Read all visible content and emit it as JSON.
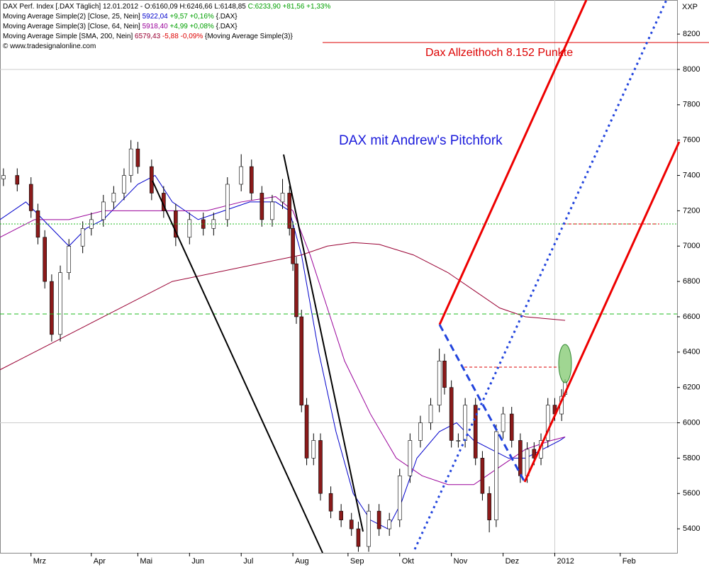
{
  "header": {
    "lines": [
      {
        "segments": [
          {
            "text": "DAX Perf. Index [.DAX  Täglich] 12.01.2012 - O:6160,09 H:6246,66 L:6148,85 ",
            "color": "#000000"
          },
          {
            "text": "C:6233,90 +81,56 +1,33%",
            "color": "#00a000"
          }
        ]
      },
      {
        "segments": [
          {
            "text": "Moving Average Simple(2) [Close, 25, Nein] ",
            "color": "#000000"
          },
          {
            "text": "5922,04",
            "color": "#0000cc"
          },
          {
            "text": " +9,57 +0,16%",
            "color": "#00a000"
          },
          {
            "text": " {.DAX}",
            "color": "#000000"
          }
        ]
      },
      {
        "segments": [
          {
            "text": "Moving Average Simple(3) [Close, 64, Nein] ",
            "color": "#000000"
          },
          {
            "text": "5918,40",
            "color": "#990099"
          },
          {
            "text": " +4,99 +0,08%",
            "color": "#00a000"
          },
          {
            "text": " {.DAX}",
            "color": "#000000"
          }
        ]
      },
      {
        "segments": [
          {
            "text": "Moving Average Simple [SMA, 200, Nein] ",
            "color": "#000000"
          },
          {
            "text": "6579,43",
            "color": "#990033"
          },
          {
            "text": " -5,88 -0,09%",
            "color": "#dd0000"
          },
          {
            "text": " {Moving Average Simple(3)}",
            "color": "#000000"
          }
        ]
      },
      {
        "segments": [
          {
            "text": "© www.tradesignalonline.com",
            "color": "#000000"
          }
        ]
      }
    ],
    "symbol": "XXP"
  },
  "chart_data": {
    "type": "candlestick",
    "annotations": [
      "Dax  Allzeithoch 8.152 Punkte",
      "DAX mit Andrew's Pitchfork"
    ],
    "xlim": [
      0,
      393
    ],
    "xticks": [
      {
        "value": 18,
        "label": "Mrz"
      },
      {
        "value": 53,
        "label": "Apr"
      },
      {
        "value": 80,
        "label": "Mai"
      },
      {
        "value": 110,
        "label": "Jun"
      },
      {
        "value": 140,
        "label": "Jul"
      },
      {
        "value": 170,
        "label": "Aug"
      },
      {
        "value": 202,
        "label": "Sep"
      },
      {
        "value": 232,
        "label": "Okt"
      },
      {
        "value": 262,
        "label": "Nov"
      },
      {
        "value": 292,
        "label": "Dez"
      },
      {
        "value": 322,
        "label": "2012"
      },
      {
        "value": 360,
        "label": "Feb"
      }
    ],
    "ylim": [
      5264,
      8393
    ],
    "yticks": [
      5400,
      5600,
      5800,
      6000,
      6200,
      6400,
      6600,
      6800,
      7000,
      7200,
      7400,
      7600,
      7800,
      8000,
      8200
    ],
    "ygrid": [
      6000,
      8000
    ],
    "up_color": "#ffffff",
    "down_color": "#8b1a1a",
    "x": [
      2,
      10,
      18,
      22,
      26,
      30,
      35,
      40,
      48,
      53,
      60,
      66,
      72,
      76,
      80,
      88,
      95,
      102,
      110,
      118,
      124,
      132,
      140,
      146,
      152,
      158,
      164,
      168,
      170,
      172,
      175,
      178,
      182,
      186,
      192,
      198,
      204,
      208,
      214,
      220,
      226,
      232,
      238,
      244,
      250,
      255,
      258,
      262,
      266,
      270,
      276,
      280,
      284,
      288,
      292,
      297,
      302,
      306,
      310,
      314,
      318,
      322,
      326,
      328
    ],
    "open": [
      7380,
      7400,
      7350,
      7200,
      7050,
      6800,
      6500,
      6850,
      7000,
      7100,
      7150,
      7250,
      7300,
      7400,
      7550,
      7450,
      7300,
      7200,
      7050,
      7150,
      7100,
      7150,
      7350,
      7450,
      7300,
      7150,
      7250,
      7300,
      7100,
      6900,
      6600,
      6100,
      5800,
      5900,
      5600,
      5500,
      5450,
      5400,
      5300,
      5500,
      5400,
      5450,
      5700,
      5900,
      6000,
      6100,
      6350,
      6200,
      5900,
      5900,
      6100,
      5800,
      5600,
      5450,
      5950,
      6050,
      5900,
      5700,
      5850,
      5800,
      5900,
      6100,
      6050,
      6160.09
    ],
    "high": [
      7440,
      7440,
      7390,
      7240,
      7090,
      6840,
      6890,
      7040,
      7140,
      7190,
      7290,
      7340,
      7440,
      7600,
      7590,
      7490,
      7340,
      7240,
      7190,
      7190,
      7190,
      7390,
      7520,
      7490,
      7340,
      7290,
      7380,
      7340,
      7140,
      6940,
      6640,
      6140,
      5940,
      5940,
      5640,
      5540,
      5490,
      5440,
      5540,
      5540,
      5490,
      5740,
      5940,
      6040,
      6140,
      6420,
      6390,
      6240,
      5940,
      6140,
      6140,
      5840,
      5640,
      5990,
      6090,
      6090,
      5940,
      5890,
      5890,
      5940,
      6140,
      6140,
      6190,
      6246.66
    ],
    "low": [
      7340,
      7310,
      7160,
      7010,
      6760,
      6460,
      6460,
      6810,
      6960,
      7060,
      7110,
      7210,
      7260,
      7360,
      7410,
      7260,
      7160,
      7000,
      7010,
      7060,
      7060,
      7110,
      7310,
      7260,
      7110,
      7110,
      7210,
      7060,
      6860,
      6560,
      6060,
      5760,
      5760,
      5560,
      5460,
      5410,
      5360,
      5270,
      5270,
      5360,
      5360,
      5410,
      5660,
      5860,
      5960,
      6060,
      6160,
      5860,
      5860,
      5860,
      5760,
      5560,
      5380,
      5410,
      5910,
      5860,
      5660,
      5660,
      5760,
      5760,
      5860,
      6010,
      6010,
      6148.85
    ],
    "close": [
      7400,
      7350,
      7200,
      7050,
      6800,
      6500,
      6850,
      7000,
      7100,
      7150,
      7250,
      7300,
      7400,
      7550,
      7450,
      7300,
      7200,
      7050,
      7150,
      7100,
      7150,
      7350,
      7450,
      7300,
      7150,
      7250,
      7300,
      7100,
      6900,
      6600,
      6100,
      5800,
      5900,
      5600,
      5500,
      5450,
      5400,
      5300,
      5500,
      5400,
      5450,
      5700,
      5900,
      6000,
      6100,
      6350,
      6200,
      5900,
      5900,
      6100,
      5800,
      5600,
      5450,
      5950,
      6050,
      5900,
      5700,
      5850,
      5800,
      5900,
      6100,
      6050,
      6150,
      6233.9
    ],
    "lines": [
      {
        "color": "#0000cc",
        "x": [
          0,
          15,
          25,
          40,
          50,
          60,
          70,
          80,
          90,
          100,
          115,
          130,
          145,
          160,
          168,
          175,
          185,
          195,
          205,
          215,
          225,
          233,
          242,
          255,
          265,
          275,
          285,
          295,
          305,
          315,
          325,
          328
        ],
        "values": [
          7150,
          7250,
          7150,
          7000,
          7100,
          7150,
          7250,
          7350,
          7400,
          7250,
          7150,
          7200,
          7250,
          7250,
          7200,
          6950,
          6400,
          5950,
          5600,
          5450,
          5400,
          5550,
          5800,
          5950,
          6000,
          5900,
          5850,
          5800,
          5800,
          5850,
          5900,
          5920
        ]
      },
      {
        "color": "#990099",
        "x": [
          0,
          20,
          40,
          60,
          80,
          100,
          120,
          140,
          160,
          170,
          180,
          190,
          200,
          215,
          230,
          245,
          260,
          275,
          290,
          305,
          320,
          328
        ],
        "values": [
          7050,
          7150,
          7150,
          7200,
          7200,
          7200,
          7200,
          7250,
          7280,
          7200,
          6950,
          6650,
          6350,
          6050,
          5800,
          5700,
          5650,
          5650,
          5750,
          5850,
          5900,
          5920
        ]
      },
      {
        "color": "#990033",
        "x": [
          0,
          50,
          100,
          150,
          175,
          190,
          205,
          220,
          240,
          260,
          275,
          290,
          305,
          328
        ],
        "values": [
          6300,
          6550,
          6800,
          6900,
          6950,
          7000,
          7020,
          7010,
          6950,
          6850,
          6750,
          6650,
          6600,
          6580
        ]
      }
    ]
  }
}
